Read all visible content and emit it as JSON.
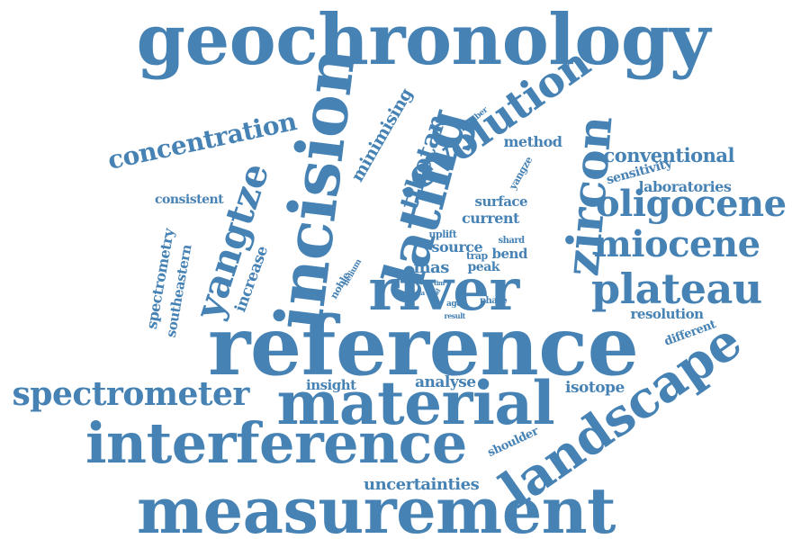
{
  "color": "#4682b4",
  "words": [
    {
      "text": "geochronology",
      "name": "word-geochronology"
    },
    {
      "text": "reference",
      "name": "word-reference"
    },
    {
      "text": "measurement",
      "name": "word-measurement"
    },
    {
      "text": "interference",
      "name": "word-interference"
    },
    {
      "text": "material",
      "name": "word-material"
    },
    {
      "text": "landscape",
      "name": "word-landscape"
    },
    {
      "text": "river",
      "name": "word-river"
    },
    {
      "text": "incision",
      "name": "word-incision"
    },
    {
      "text": "zircon",
      "name": "word-zircon"
    },
    {
      "text": "dating",
      "name": "word-dating"
    },
    {
      "text": "evolution",
      "name": "word-evolution"
    },
    {
      "text": "yangtze",
      "name": "word-yangtze"
    },
    {
      "text": "plateau",
      "name": "word-plateau"
    },
    {
      "text": "miocene",
      "name": "word-miocene"
    },
    {
      "text": "oligocene",
      "name": "word-oligocene"
    },
    {
      "text": "spectrometer",
      "name": "word-spectrometer"
    },
    {
      "text": "concentration",
      "name": "word-concentration"
    },
    {
      "text": "tibetan",
      "name": "word-tibetan"
    },
    {
      "text": "minimising",
      "name": "word-minimising"
    },
    {
      "text": "conventional",
      "name": "word-conventional"
    },
    {
      "text": "laboratories",
      "name": "word-laboratories"
    },
    {
      "text": "sensitivity",
      "name": "word-sensitivity"
    },
    {
      "text": "method",
      "name": "word-method"
    },
    {
      "text": "yangze",
      "name": "word-yangze"
    },
    {
      "text": "number",
      "name": "word-number"
    },
    {
      "text": "surface",
      "name": "word-surface"
    },
    {
      "text": "current",
      "name": "word-current"
    },
    {
      "text": "uplift",
      "name": "word-uplift"
    },
    {
      "text": "source",
      "name": "word-source"
    },
    {
      "text": "shard",
      "name": "word-shard"
    },
    {
      "text": "bend",
      "name": "word-bend"
    },
    {
      "text": "trap",
      "name": "word-trap"
    },
    {
      "text": "mas",
      "name": "word-mas"
    },
    {
      "text": "peak",
      "name": "word-peak"
    },
    {
      "text": "tim",
      "name": "word-tim"
    },
    {
      "text": "yield",
      "name": "word-yield"
    },
    {
      "text": "data",
      "name": "word-data"
    },
    {
      "text": "age",
      "name": "word-age"
    },
    {
      "text": "phase",
      "name": "word-phase"
    },
    {
      "text": "result",
      "name": "word-result"
    },
    {
      "text": "helium",
      "name": "word-helium"
    },
    {
      "text": "noble",
      "name": "word-noble"
    },
    {
      "text": "consistent",
      "name": "word-consistent"
    },
    {
      "text": "spectrometry",
      "name": "word-spectrometry"
    },
    {
      "text": "southeastern",
      "name": "word-southeastern"
    },
    {
      "text": "increase",
      "name": "word-increase"
    },
    {
      "text": "insight",
      "name": "word-insight"
    },
    {
      "text": "analyse",
      "name": "word-analyse"
    },
    {
      "text": "isotope",
      "name": "word-isotope"
    },
    {
      "text": "resolution",
      "name": "word-resolution"
    },
    {
      "text": "different",
      "name": "word-different"
    },
    {
      "text": "shoulder",
      "name": "word-shoulder"
    },
    {
      "text": "uncertainties",
      "name": "word-uncertainties"
    }
  ]
}
